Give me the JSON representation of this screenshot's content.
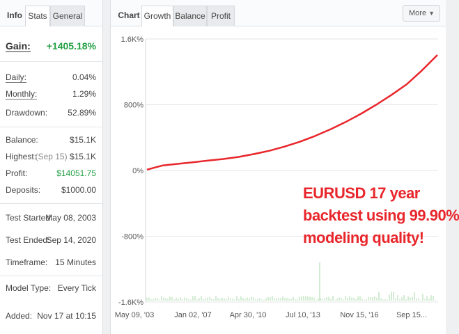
{
  "left_panel": {
    "tabs": [
      {
        "label": "Info"
      },
      {
        "label": "Stats"
      },
      {
        "label": "General"
      }
    ],
    "gain": {
      "label": "Gain:",
      "value": "+1405.18%"
    },
    "daily": {
      "label": "Daily:",
      "value": "0.04%"
    },
    "monthly": {
      "label": "Monthly:",
      "value": "1.29%"
    },
    "drawdown": {
      "label": "Drawdown:",
      "value": "52.89%"
    },
    "balance": {
      "label": "Balance:",
      "value": "$15.1K"
    },
    "highest": {
      "label": "Highest:",
      "note": "(Sep 15)",
      "value": "$15.1K"
    },
    "profit": {
      "label": "Profit:",
      "value": "$14051.75"
    },
    "deposits": {
      "label": "Deposits:",
      "value": "$1000.00"
    },
    "test_started": {
      "label": "Test Started:",
      "value": "May 08, 2003"
    },
    "test_ended": {
      "label": "Test Ended:",
      "value": "Sep 14, 2020"
    },
    "timeframe": {
      "label": "Timeframe:",
      "value": "15 Minutes"
    },
    "model_type": {
      "label": "Model Type:",
      "value": "Every Tick"
    },
    "added": {
      "label": "Added:",
      "value": "Nov 17 at 10:15"
    }
  },
  "right_panel": {
    "tabs": [
      {
        "label": "Chart"
      },
      {
        "label": "Growth"
      },
      {
        "label": "Balance"
      },
      {
        "label": "Profit"
      }
    ],
    "more_label": "More",
    "annotation": [
      "EURUSD 17 year",
      "backtest using 99.90%",
      "modeling quality!"
    ]
  },
  "colors": {
    "growth_line": "#e8262b",
    "volume_bars": "#a8d8a8",
    "gain_green": "#23a044"
  },
  "icons": {
    "more_dropdown": "chevron-down-icon"
  },
  "chart_data": {
    "type": "line",
    "title": "",
    "xlabel": "",
    "ylabel": "",
    "ylim": [
      -1600,
      1600
    ],
    "y_ticks": [
      {
        "value": 1600,
        "label": "1.6K%"
      },
      {
        "value": 800,
        "label": "800%"
      },
      {
        "value": 0,
        "label": "0%"
      },
      {
        "value": -800,
        "label": "-800%"
      },
      {
        "value": -1600,
        "label": "-1.6K%"
      }
    ],
    "x_ticks": [
      "May 09, '03",
      "Jan 02, '07",
      "Apr 30, '10",
      "Jul 10, '13",
      "Nov 15, '16",
      "Sep 15..."
    ],
    "grid": "horizontal",
    "series": [
      {
        "x": [
          "2003-05",
          "2003-06",
          "2004-01",
          "2005-01",
          "2006-01",
          "2007-01",
          "2008-01",
          "2009-01",
          "2010-01",
          "2011-01",
          "2012-01",
          "2013-01",
          "2014-01",
          "2015-01",
          "2016-01",
          "2017-01",
          "2018-01",
          "2019-01",
          "2020-01",
          "2020-09"
        ],
        "values": [
          10,
          60,
          80,
          100,
          120,
          140,
          165,
          200,
          240,
          290,
          350,
          420,
          500,
          590,
          690,
          800,
          920,
          1050,
          1220,
          1405
        ]
      }
    ]
  }
}
